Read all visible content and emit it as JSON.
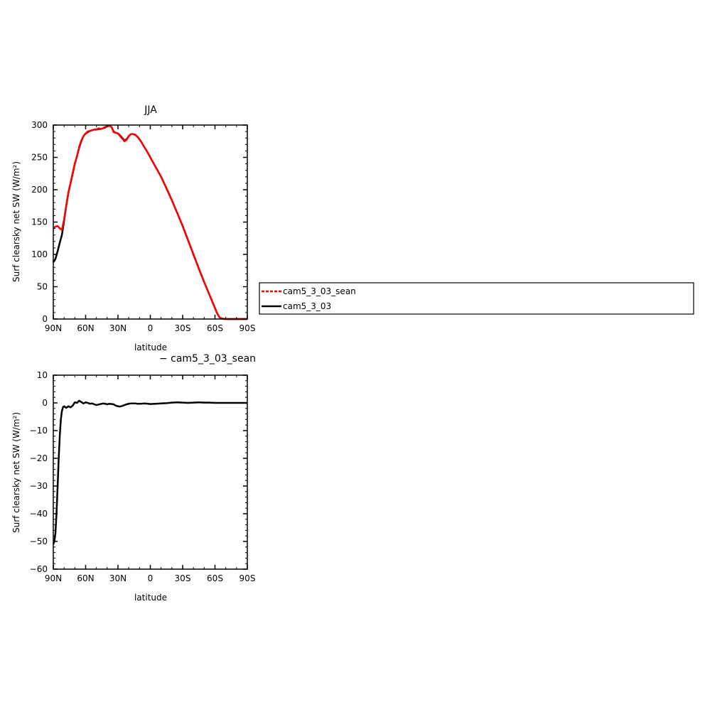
{
  "chart_data": [
    {
      "type": "line",
      "title": "JJA",
      "xlabel": "latitude",
      "ylabel": "Surf clearsky net SW (W/m²)",
      "xlim": [
        -90,
        90
      ],
      "ylim": [
        0,
        300
      ],
      "x_reversed": true,
      "x_ticks": [
        {
          "value": 90,
          "label": "90N"
        },
        {
          "value": 60,
          "label": "60N"
        },
        {
          "value": 30,
          "label": "30N"
        },
        {
          "value": 0,
          "label": "0"
        },
        {
          "value": -30,
          "label": "30S"
        },
        {
          "value": -60,
          "label": "60S"
        },
        {
          "value": -90,
          "label": "90S"
        }
      ],
      "y_ticks": [
        0,
        50,
        100,
        150,
        200,
        250,
        300
      ],
      "legend": {
        "placement": "right",
        "entries": [
          {
            "name": "cam5_3_03_sean",
            "color": "#ff0000",
            "style": "dashed"
          },
          {
            "name": "cam5_3_03",
            "color": "#000000",
            "style": "solid"
          }
        ]
      },
      "series": [
        {
          "name": "cam5_3_03",
          "color": "#000000",
          "x": [
            90,
            88,
            86,
            84,
            82,
            80,
            78,
            76,
            74,
            72,
            70,
            68,
            66,
            64,
            62,
            60,
            58,
            56,
            54,
            52,
            50,
            48,
            46,
            44,
            42,
            40,
            38,
            36,
            34,
            32,
            30,
            28,
            26,
            24,
            22,
            20,
            18,
            16,
            14,
            12,
            10,
            8,
            6,
            4,
            2,
            0,
            -5,
            -10,
            -15,
            -20,
            -25,
            -30,
            -35,
            -40,
            -45,
            -50,
            -55,
            -60,
            -62,
            -64,
            -66,
            -68,
            -70,
            -75,
            -80,
            -85,
            -90
          ],
          "y": [
            88,
            93,
            105,
            118,
            130,
            152,
            175,
            195,
            210,
            225,
            240,
            252,
            265,
            275,
            283,
            287,
            289,
            291,
            292,
            293,
            293,
            294,
            294,
            295,
            296,
            298,
            299,
            297,
            290,
            288,
            287,
            284,
            280,
            276,
            278,
            283,
            286,
            286,
            285,
            282,
            278,
            273,
            267,
            262,
            256,
            250,
            235,
            220,
            202,
            184,
            164,
            144,
            122,
            100,
            78,
            57,
            37,
            17,
            9,
            3,
            1,
            0.3,
            0,
            0,
            0,
            0,
            0
          ]
        },
        {
          "name": "cam5_3_03_sean",
          "color": "#ff0000",
          "x": [
            90,
            88,
            86,
            84,
            82,
            80,
            78,
            76,
            74,
            72,
            70,
            68,
            66,
            64,
            62,
            60,
            58,
            56,
            54,
            52,
            50,
            48,
            46,
            44,
            42,
            40,
            38,
            36,
            34,
            32,
            30,
            28,
            26,
            24,
            22,
            20,
            18,
            16,
            14,
            12,
            10,
            8,
            6,
            4,
            2,
            0,
            -5,
            -10,
            -15,
            -20,
            -25,
            -30,
            -35,
            -40,
            -45,
            -50,
            -55,
            -60,
            -62,
            -64,
            -66,
            -68,
            -70,
            -75,
            -80,
            -85,
            -90
          ],
          "y": [
            140,
            143,
            144,
            140,
            138,
            154,
            175,
            196,
            211,
            226,
            241,
            252,
            266,
            276,
            283,
            287,
            290,
            291,
            292,
            293,
            293,
            295,
            294,
            295,
            297,
            298,
            299,
            297,
            289,
            288,
            287,
            283,
            279,
            275,
            277,
            283,
            286,
            286,
            285,
            282,
            278,
            273,
            267,
            262,
            256,
            250,
            235,
            220,
            202,
            184,
            164,
            144,
            122,
            100,
            78,
            57,
            37,
            17,
            9,
            3,
            1,
            0.3,
            0,
            0,
            0,
            0,
            0
          ]
        }
      ]
    },
    {
      "type": "line",
      "title": "− cam5_3_03_sean",
      "xlabel": "latitude",
      "ylabel": "Surf clearsky net SW (W/m²)",
      "xlim": [
        -90,
        90
      ],
      "ylim": [
        -60,
        10
      ],
      "x_reversed": true,
      "x_ticks": [
        {
          "value": 90,
          "label": "90N"
        },
        {
          "value": 60,
          "label": "60N"
        },
        {
          "value": 30,
          "label": "30N"
        },
        {
          "value": 0,
          "label": "0"
        },
        {
          "value": -30,
          "label": "30S"
        },
        {
          "value": -60,
          "label": "60S"
        },
        {
          "value": -90,
          "label": "90S"
        }
      ],
      "y_ticks": [
        10,
        0,
        -10,
        -20,
        -30,
        -40,
        -50,
        -60
      ],
      "y_tick_labels": [
        "10",
        "0",
        "−10",
        "−20",
        "−30",
        "−40",
        "−50",
        "−60"
      ],
      "series": [
        {
          "name": "",
          "color": "#000000",
          "x": [
            90,
            89,
            88,
            87,
            86,
            85,
            84,
            83,
            82,
            81,
            80,
            79,
            78,
            76,
            74,
            72,
            70,
            68,
            66,
            64,
            62,
            60,
            58,
            56,
            54,
            52,
            50,
            48,
            46,
            44,
            42,
            40,
            38,
            36,
            34,
            32,
            30,
            28,
            26,
            24,
            22,
            20,
            18,
            16,
            14,
            12,
            10,
            5,
            0,
            -5,
            -10,
            -15,
            -20,
            -25,
            -30,
            -35,
            -40,
            -45,
            -50,
            -55,
            -60,
            -65,
            -70,
            -80,
            -90
          ],
          "y": [
            -51,
            -50,
            -47,
            -40,
            -30,
            -20,
            -12,
            -6,
            -3,
            -1.5,
            -1.2,
            -1.5,
            -1.8,
            -1.2,
            -1.6,
            -1.0,
            0.2,
            0.0,
            0.8,
            0.3,
            -0.2,
            0.2,
            0.0,
            -0.3,
            -0.2,
            -0.5,
            -0.8,
            -0.6,
            -0.4,
            -0.2,
            -0.3,
            -0.5,
            -0.3,
            -0.4,
            -0.5,
            -1.0,
            -1.2,
            -1.3,
            -1.1,
            -0.8,
            -0.5,
            -0.3,
            -0.2,
            -0.2,
            -0.2,
            -0.3,
            -0.3,
            -0.2,
            -0.4,
            -0.3,
            -0.2,
            -0.1,
            0.1,
            0.2,
            0.1,
            0.0,
            0.1,
            0.2,
            0.1,
            0.1,
            0.0,
            0.0,
            0.0,
            0.0,
            0.0
          ]
        }
      ]
    }
  ]
}
